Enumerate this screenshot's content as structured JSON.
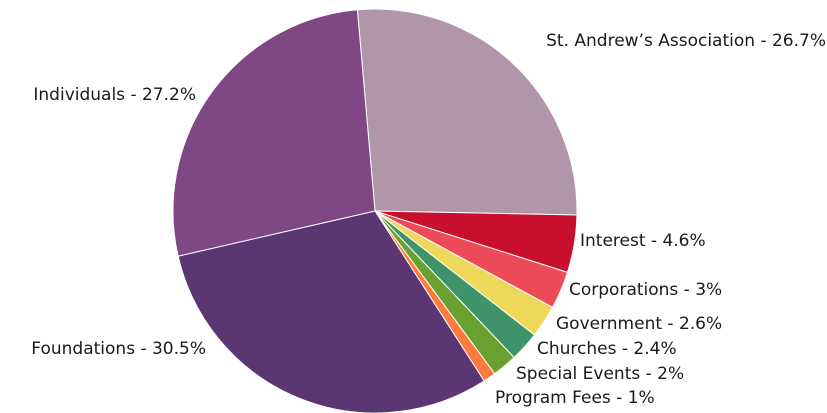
{
  "chart_data": {
    "type": "pie",
    "title": "",
    "slices": [
      {
        "label": "St. Andrew’s Association - 26.7%",
        "name": "St. Andrew’s Association",
        "value": 26.7,
        "color": "#b096a8"
      },
      {
        "label": "Interest - 4.6%",
        "name": "Interest",
        "value": 4.6,
        "color": "#c8102e"
      },
      {
        "label": "Corporations - 3%",
        "name": "Corporations",
        "value": 3,
        "color": "#ec4a57"
      },
      {
        "label": "Government - 2.6%",
        "name": "Government",
        "value": 2.6,
        "color": "#eed85a"
      },
      {
        "label": "Churches - 2.4%",
        "name": "Churches",
        "value": 2.4,
        "color": "#3f9368"
      },
      {
        "label": "Special Events - 2%",
        "name": "Special Events",
        "value": 2,
        "color": "#6aa030"
      },
      {
        "label": "Program Fees - 1%",
        "name": "Program Fees",
        "value": 1,
        "color": "#ff7a3d"
      },
      {
        "label": "Foundations - 30.5%",
        "name": "Foundations",
        "value": 30.5,
        "color": "#5a3672"
      },
      {
        "label": "Individuals - 27.2%",
        "name": "Individuals",
        "value": 27.2,
        "color": "#7f4784"
      }
    ]
  }
}
